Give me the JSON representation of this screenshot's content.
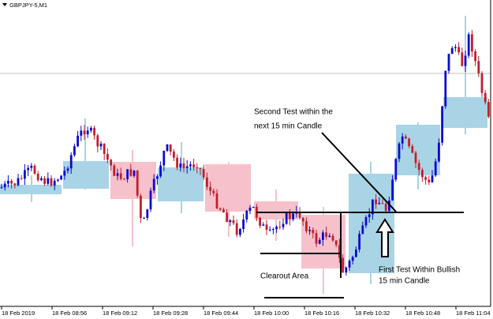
{
  "window": {
    "title": "GBPJPY-5,M1"
  },
  "x_labels": [
    "18 Feb 2019",
    "18 Feb 08:56",
    "18 Feb 09:12",
    "18 Feb 09:28",
    "18 Feb 09:44",
    "18 Feb 10:00",
    "18 Feb 10:16",
    "18 Feb 10:32",
    "18 Feb 10:48",
    "18 Feb 11:04"
  ],
  "annotations": {
    "second_test": [
      "Second Test within the",
      "next 15 min Candle"
    ],
    "clearout": "Clearout Area",
    "first_test": [
      "First Test Within Bullish",
      "15 min Candle"
    ]
  }
}
